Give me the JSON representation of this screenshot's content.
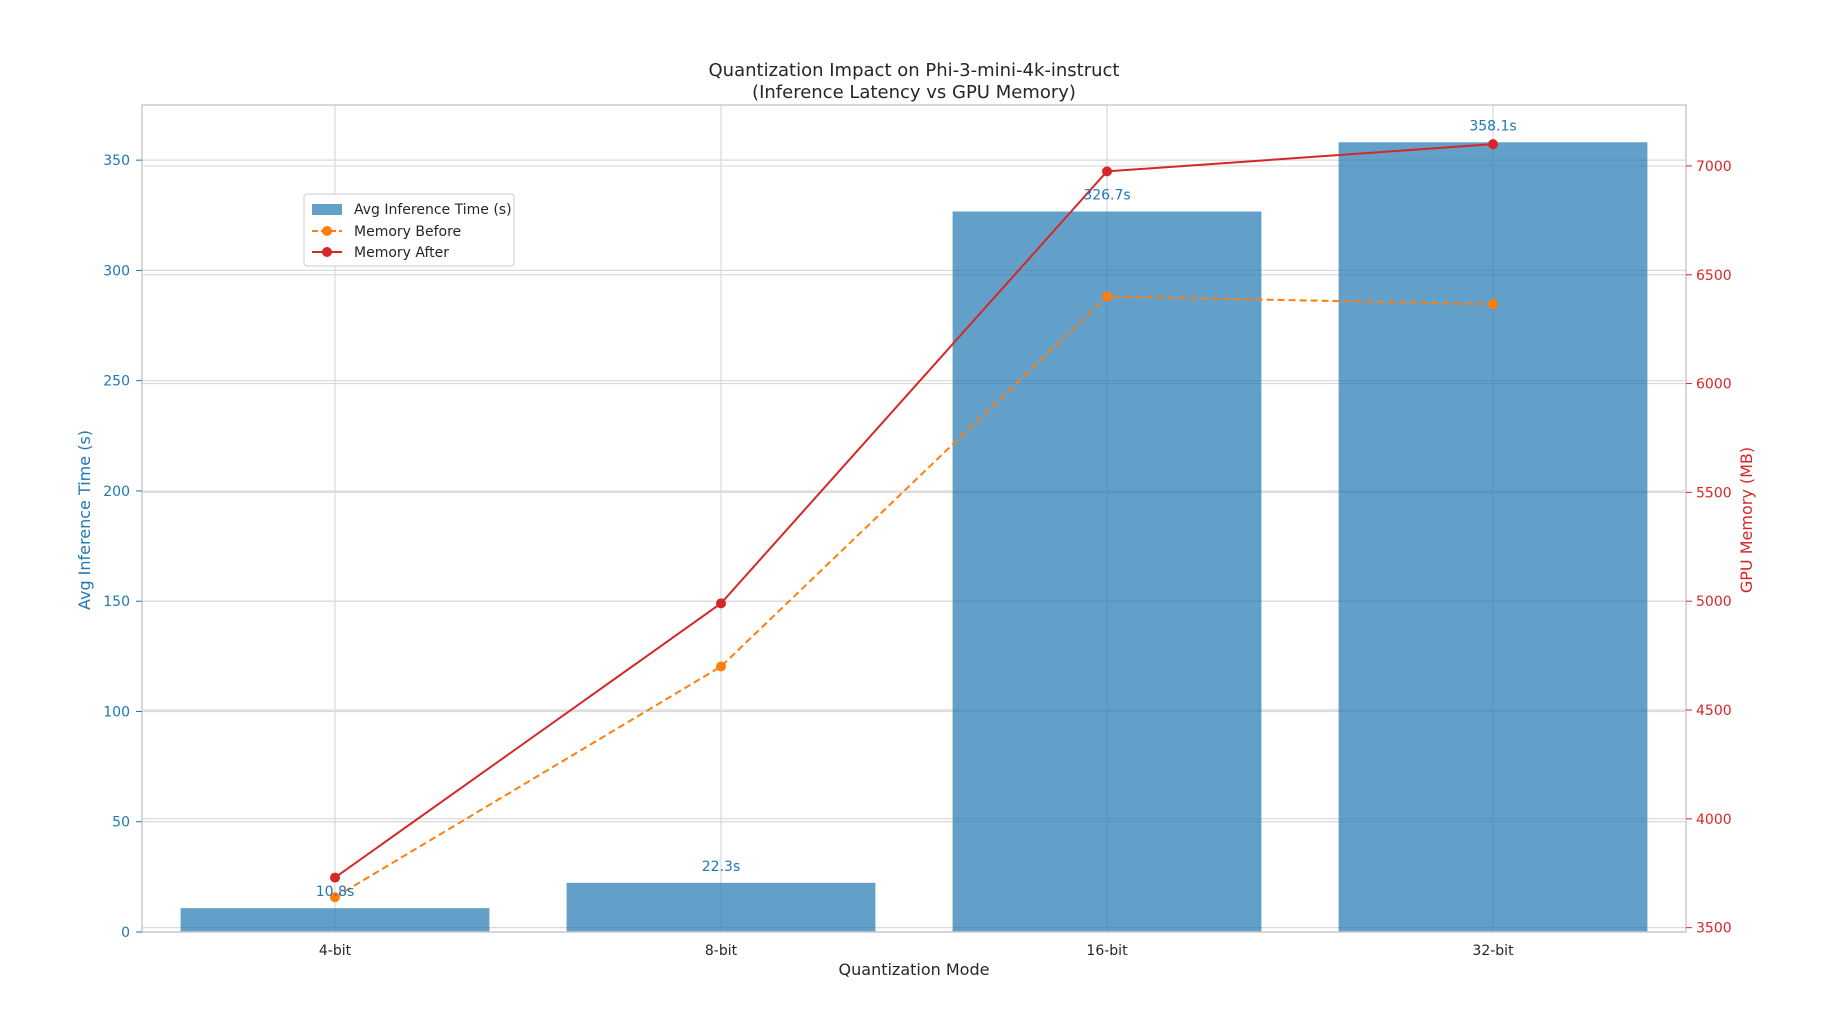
{
  "chart_data": {
    "type": "bar",
    "title_line1": "Quantization Impact on Phi-3-mini-4k-instruct",
    "title_line2": "(Inference Latency vs GPU Memory)",
    "xlabel": "Quantization Mode",
    "ylabel": "Avg Inference Time (s)",
    "y2label": "GPU Memory (MB)",
    "categories": [
      "4-bit",
      "8-bit",
      "16-bit",
      "32-bit"
    ],
    "ylim": [
      0,
      375
    ],
    "y2lim": [
      3480,
      7280
    ],
    "yticks": [
      0,
      50,
      100,
      150,
      200,
      250,
      300,
      350
    ],
    "y2ticks": [
      3500,
      4000,
      4500,
      5000,
      5500,
      6000,
      6500,
      7000
    ],
    "bar_series": {
      "name": "Avg Inference Time (s)",
      "values": [
        10.8,
        22.3,
        326.7,
        358.1
      ],
      "labels": [
        "10.8s",
        "22.3s",
        "326.7s",
        "358.1s"
      ],
      "color": "#1f77b4"
    },
    "line_series": [
      {
        "name": "Memory Before",
        "values": [
          3640,
          4700,
          6400,
          6365
        ],
        "color": "#ff7f0e",
        "dashed": true
      },
      {
        "name": "Memory After",
        "values": [
          3730,
          4990,
          6975,
          7100
        ],
        "color": "#d62728",
        "dashed": false
      }
    ],
    "legend_position": "upper-left",
    "grid": true,
    "colors": {
      "left_axis": "#1f77b4",
      "right_axis": "#d62728",
      "grid": "#d9d9d9",
      "frame": "#cccccc",
      "text": "#262626"
    }
  }
}
